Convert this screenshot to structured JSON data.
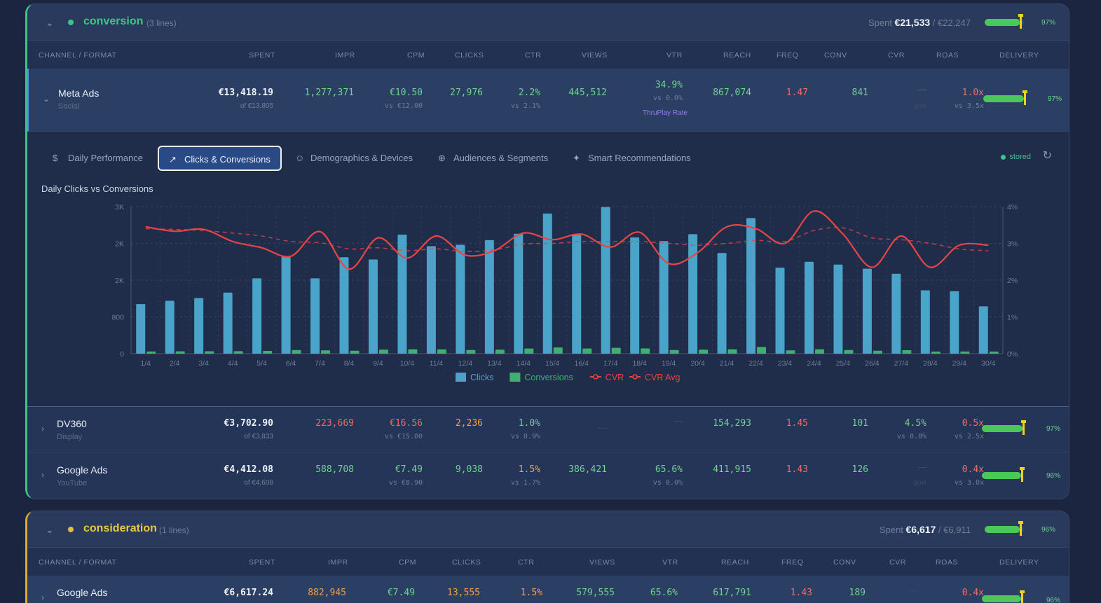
{
  "groups": [
    {
      "name": "conversion",
      "count": "(3 lines)",
      "color": "#3ec48a",
      "spent_label": "Spent",
      "spent": "€21,533",
      "budget": "/ €22,247",
      "delivery_pct": "97%",
      "delivery_value": 0.97,
      "columns": [
        "CHANNEL / FORMAT",
        "SPENT",
        "IMPR",
        "CPM",
        "CLICKS",
        "CTR",
        "VIEWS",
        "VTR",
        "REACH",
        "FREQ",
        "CONV",
        "CVR",
        "ROAS",
        "DELIVERY"
      ],
      "rows": [
        {
          "name": "Meta Ads",
          "type": "Social",
          "spent": "€13,418.19",
          "spent_sub": "of €13,805",
          "impr": "1,277,371",
          "cpm": "€10.50",
          "cpm_sub": "vs €12.00",
          "clicks": "27,976",
          "ctr": "2.2%",
          "ctr_sub": "vs 2.1%",
          "views": "445,512",
          "vtr": "34.9%",
          "vtr_sub": "vs 0.0%",
          "vtr_note": "ThruPlay Rate",
          "reach": "867,074",
          "freq": "1.47",
          "conv": "841",
          "cvr": "—",
          "cvr_sub": "goal",
          "roas": "1.0x",
          "roas_sub": "vs 3.5x",
          "delivery": "97%",
          "delivery_value": 0.97
        },
        {
          "name": "DV360",
          "type": "Display",
          "spent": "€3,702.90",
          "spent_sub": "of €3,833",
          "impr": "223,669",
          "cpm": "€16.56",
          "cpm_sub": "vs €15.00",
          "clicks": "2,236",
          "ctr": "1.0%",
          "ctr_sub": "vs 0.9%",
          "views": "—",
          "vtr": "—",
          "reach": "154,293",
          "freq": "1.45",
          "conv": "101",
          "cvr": "4.5%",
          "cvr_sub": "vs 0.8%",
          "roas": "0.5x",
          "roas_sub": "vs 2.5x",
          "delivery": "97%",
          "delivery_value": 0.97
        },
        {
          "name": "Google Ads",
          "type": "YouTube",
          "spent": "€4,412.08",
          "spent_sub": "of €4,608",
          "impr": "588,708",
          "cpm": "€7.49",
          "cpm_sub": "vs €8.90",
          "clicks": "9,038",
          "ctr": "1.5%",
          "ctr_sub": "vs 1.7%",
          "views": "386,421",
          "vtr": "65.6%",
          "vtr_sub": "vs 0.0%",
          "reach": "411,915",
          "freq": "1.43",
          "conv": "126",
          "cvr": "—",
          "cvr_sub": "goal",
          "roas": "0.4x",
          "roas_sub": "vs 3.0x",
          "delivery": "96%",
          "delivery_value": 0.96
        }
      ]
    },
    {
      "name": "consideration",
      "count": "(1 lines)",
      "color": "#e0c030",
      "spent_label": "Spent",
      "spent": "€6,617",
      "budget": "/ €6,911",
      "delivery_pct": "96%",
      "delivery_value": 0.96,
      "columns": [
        "CHANNEL / FORMAT",
        "SPENT",
        "IMPR",
        "CPM",
        "CLICKS",
        "CTR",
        "VIEWS",
        "VTR",
        "REACH",
        "FREQ",
        "CONV",
        "CVR",
        "ROAS",
        "DELIVERY"
      ],
      "rows": [
        {
          "name": "Google Ads",
          "spent": "€6,617.24",
          "impr": "882,945",
          "cpm": "€7.49",
          "clicks": "13,555",
          "ctr": "1.5%",
          "views": "579,555",
          "vtr": "65.6%",
          "reach": "617,791",
          "freq": "1.43",
          "conv": "189",
          "cvr": "—",
          "roas": "0.4x",
          "delivery": "96%",
          "delivery_value": 0.96
        }
      ]
    }
  ],
  "tabs": [
    {
      "label": "Daily Performance",
      "icon": "dollar-icon"
    },
    {
      "label": "Clicks & Conversions",
      "icon": "trend-icon",
      "active": true
    },
    {
      "label": "Demographics & Devices",
      "icon": "users-icon"
    },
    {
      "label": "Audiences & Segments",
      "icon": "target-icon"
    },
    {
      "label": "Smart Recommendations",
      "icon": "sparkle-icon"
    }
  ],
  "stored_label": "stored",
  "chart_data": {
    "type": "bar",
    "title": "Daily Clicks vs Conversions",
    "categories": [
      "1/4",
      "2/4",
      "3/4",
      "4/4",
      "5/4",
      "6/4",
      "7/4",
      "8/4",
      "9/4",
      "10/4",
      "11/4",
      "12/4",
      "13/4",
      "14/4",
      "15/4",
      "16/4",
      "17/4",
      "18/4",
      "19/4",
      "20/4",
      "21/4",
      "22/4",
      "23/4",
      "24/4",
      "25/4",
      "26/4",
      "27/4",
      "28/4",
      "29/4",
      "30/4"
    ],
    "y_ticks": [
      "0",
      "800",
      "2K",
      "2K",
      "3K"
    ],
    "y2_ticks": [
      "0%",
      "1%",
      "2%",
      "3%",
      "4%"
    ],
    "ylim": [
      0,
      3200
    ],
    "y2lim": [
      0,
      4
    ],
    "series": [
      {
        "name": "Clicks",
        "kind": "bar",
        "color": "#4aa3c8",
        "values": [
          1080,
          1150,
          1210,
          1330,
          1640,
          2110,
          1640,
          2100,
          2050,
          2590,
          2340,
          2370,
          2470,
          2610,
          3050,
          2590,
          3190,
          2530,
          2450,
          2600,
          2190,
          2950,
          1870,
          2000,
          1940,
          1850,
          1740,
          1380,
          1360,
          1030
        ]
      },
      {
        "name": "Conversions",
        "kind": "bar",
        "color": "#3fb070",
        "values": [
          30,
          32,
          33,
          35,
          38,
          50,
          45,
          40,
          55,
          60,
          58,
          50,
          55,
          70,
          85,
          70,
          80,
          72,
          50,
          55,
          60,
          90,
          45,
          60,
          50,
          40,
          48,
          28,
          30,
          24
        ]
      },
      {
        "name": "CVR",
        "kind": "line",
        "color": "#e84545",
        "values": [
          3.45,
          3.33,
          3.38,
          3.05,
          2.88,
          2.65,
          3.32,
          2.3,
          3.15,
          2.6,
          3.2,
          2.68,
          2.8,
          3.28,
          3.1,
          3.25,
          2.9,
          3.3,
          2.45,
          2.75,
          3.45,
          3.4,
          3.0,
          3.88,
          3.25,
          2.35,
          3.2,
          2.35,
          2.95,
          2.95
        ]
      },
      {
        "name": "CVR Avg",
        "kind": "line",
        "dashed": true,
        "color": "#e84545",
        "values": [
          3.4,
          3.38,
          3.35,
          3.28,
          3.2,
          3.05,
          3.02,
          2.85,
          2.88,
          2.8,
          2.85,
          2.78,
          2.82,
          2.98,
          3.0,
          3.05,
          3.05,
          3.05,
          3.0,
          2.95,
          3.0,
          3.08,
          3.05,
          3.35,
          3.42,
          3.15,
          3.1,
          3.0,
          2.85,
          2.8
        ]
      }
    ]
  }
}
